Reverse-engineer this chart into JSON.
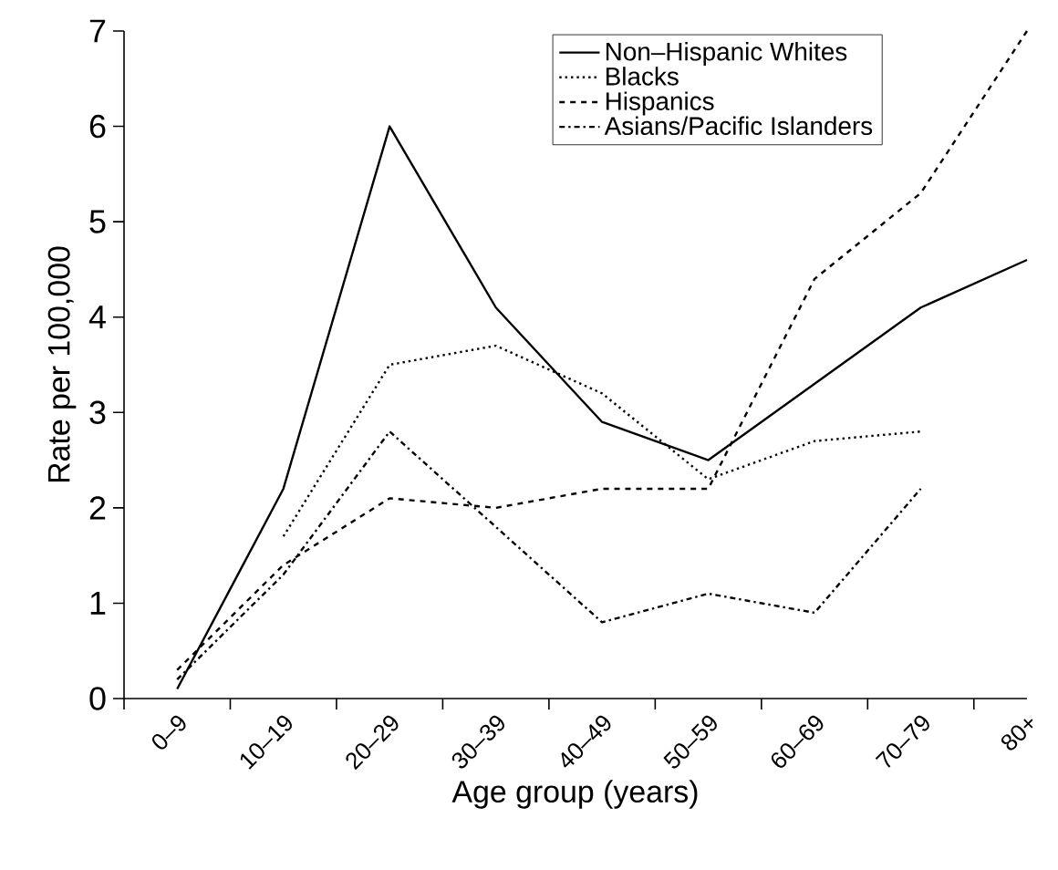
{
  "chart_data": {
    "type": "line",
    "xlabel": "Age group (years)",
    "ylabel": "Rate per 100,000",
    "categories": [
      "0–9",
      "10–19",
      "20–29",
      "30–39",
      "40–49",
      "50–59",
      "60–69",
      "70–79",
      "80+"
    ],
    "ylim": [
      0,
      7
    ],
    "yticks": [
      0,
      1,
      2,
      3,
      4,
      5,
      6,
      7
    ],
    "legend": "top right",
    "marker": "none",
    "grid": false,
    "series": [
      {
        "name": "Non–Hispanic Whites",
        "color": "#000000",
        "line_style": "solid",
        "values": [
          0.1,
          2.2,
          6.0,
          4.1,
          2.9,
          2.5,
          3.3,
          4.1,
          4.6
        ]
      },
      {
        "name": "Blacks",
        "color": "#000000",
        "line_style": "dotted",
        "values": [
          null,
          1.7,
          3.5,
          3.7,
          3.2,
          2.3,
          2.7,
          2.8,
          null
        ]
      },
      {
        "name": "Hispanics",
        "color": "#000000",
        "line_style": "dashed",
        "values": [
          0.3,
          1.4,
          2.1,
          2.0,
          2.2,
          2.2,
          4.4,
          5.3,
          7.0
        ]
      },
      {
        "name": "Asians/Pacific Islanders",
        "color": "#000000",
        "line_style": "dashdotted",
        "values": [
          0.2,
          1.3,
          2.8,
          1.8,
          0.8,
          1.1,
          0.9,
          2.2,
          null
        ]
      }
    ]
  }
}
